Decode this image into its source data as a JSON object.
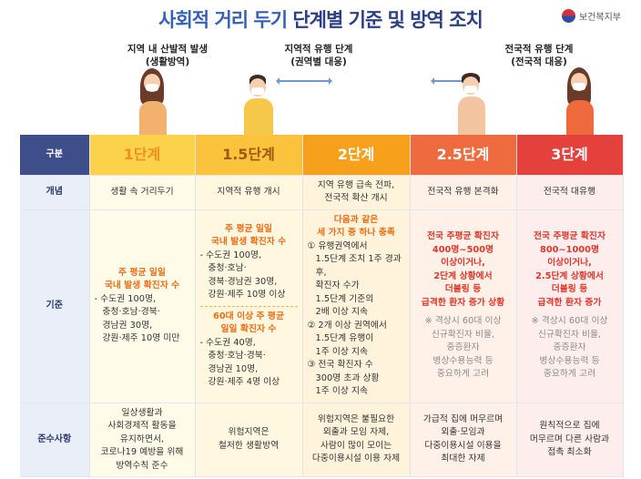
{
  "header": {
    "title_part1": "사회적 거리 두기",
    "title_part2": "단계별 기준 및 방역 조치",
    "ministry": "보건복지부"
  },
  "top_labels": {
    "local": [
      "지역 내 산발적 발생",
      "(생활방역)"
    ],
    "regional": [
      "지역적 유행 단계",
      "(권역별 대응)"
    ],
    "national": [
      "전국적 유행 단계",
      "(전국적 대응)"
    ]
  },
  "colors": {
    "title_blue": "#3560b4",
    "stage1": "#fcd24b",
    "stage15": "#fbc23c",
    "stage2": "#f6a01c",
    "stage25": "#ef6b3f",
    "stage3": "#e4403c",
    "row_header": "#3e4e8a"
  },
  "table": {
    "row_labels": {
      "category": "구분",
      "concept": "개념",
      "criteria": "기준",
      "rules": "준수사항"
    },
    "stages": [
      "1단계",
      "1.5단계",
      "2단계",
      "2.5단계",
      "3단계"
    ],
    "concept": [
      "생활 속 거리두기",
      "지역적 유행 개시",
      "지역 유행 급속 전파,\n전국적 확산 개시",
      "전국적 유행 본격화",
      "전국적 대유행"
    ],
    "criteria": {
      "s1": {
        "title": [
          "주 평균 일일",
          "국내 발생 확진자 수"
        ],
        "items": [
          "- 수도권 100명,",
          "충청·호남·경북·",
          "경남권 30명,",
          "강원·제주 10명 미만"
        ]
      },
      "s15": {
        "a_title": [
          "주 평균 일일",
          "국내 발생 확진자 수"
        ],
        "a_items": [
          "- 수도권 100명,",
          "충청·호남·",
          "경북·경남권 30명,",
          "강원·제주 10명 이상"
        ],
        "b_title": [
          "60대 이상 주 평균",
          "일일 확진자 수"
        ],
        "b_items": [
          "- 수도권 40명,",
          "충청·호남·경북·",
          "경남권 10명,",
          "강원·제주 4명 이상"
        ]
      },
      "s2": {
        "title": [
          "다음과 같은",
          "세 가지 중 하나 충족"
        ],
        "item1": [
          "① 유행권역에서",
          "1.5단계 조치 1주 경과 후,",
          "확진자 수가",
          "1.5단계 기준의",
          "2배 이상 지속"
        ],
        "item2": [
          "② 2개 이상 권역에서",
          "1.5단계 유행이",
          "1주 이상 지속"
        ],
        "item3": [
          "③ 전국 확진자 수",
          "300명 초과 상황",
          "1주 이상 지속"
        ]
      },
      "s25": {
        "title": [
          "전국 주평균 확진자",
          "400명~500명",
          "이상이거나,",
          "2단계 상황에서",
          "더블링 등",
          "급격한 환자 증가 상황"
        ],
        "note": [
          "※ 격상시 60대 이상",
          "신규확진자 비율,",
          "중증환자",
          "병상수용능력 등",
          "중요하게 고려"
        ]
      },
      "s3": {
        "title": [
          "전국 주평균 확진자",
          "800~1000명",
          "이상이거나,",
          "2.5단계 상황에서",
          "더블링 등",
          "급격한 환자 증가"
        ],
        "note": [
          "※ 격상시 60대 이상",
          "신규확진자 비율,",
          "중증환자",
          "병상수용능력 등",
          "중요하게 고려"
        ]
      }
    },
    "rules": [
      [
        "일상생활과",
        "사회경제적 활동을",
        "유지하면서,",
        "코로나19 예방을 위해",
        "방역수칙 준수"
      ],
      [
        "위험지역은",
        "철저한 생활방역"
      ],
      [
        "위험지역은 불필요한",
        "외출과 모임 자제,",
        "사람이 많이 모이는",
        "다중이용시설 이용 자제"
      ],
      [
        "가급적 집에 머무르며",
        "외출·모임과",
        "다중이용시설 이용을",
        "최대한 자제"
      ],
      [
        "원칙적으로 집에",
        "머무르며 다른 사람과",
        "접촉 최소화"
      ]
    ]
  }
}
